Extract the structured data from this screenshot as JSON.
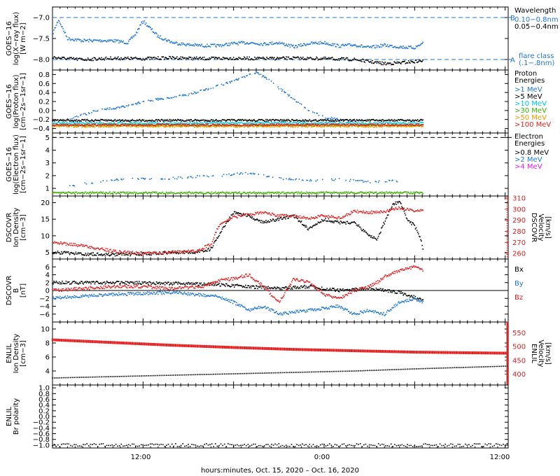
{
  "footer": {
    "time_label": "hours:minutes, Oct. 15, 2020 – Oct. 16, 2020"
  },
  "x_axis": {
    "ticks": [
      {
        "hour": 12,
        "label": "12:00"
      },
      {
        "hour": 24,
        "label": "0:00"
      },
      {
        "hour": 36,
        "label": "12:00"
      }
    ],
    "range_hours": [
      6,
      36.2
    ],
    "data_end_hour": 30.6
  },
  "colors": {
    "black": "#000000",
    "blue": "#1f77d6",
    "cyan": "#00c8e0",
    "green": "#3cb000",
    "orange": "#e8a000",
    "red": "#e02020",
    "magenta": "#e020e0"
  },
  "chart_data": [
    {
      "type": "line",
      "name": "xray",
      "ylabel": [
        "GOES−16",
        "log(X−ray flux)",
        "[W m−2]"
      ],
      "ytick_labels": [
        "−7.0",
        "−7.5",
        "−8.0"
      ],
      "yticks": [
        -7.0,
        -7.5,
        -8.0
      ],
      "ylim": [
        -8.25,
        -6.75
      ],
      "ref_lines": [
        {
          "y": -7.0,
          "letter": "B"
        },
        {
          "y": -8.0,
          "letter": "A"
        }
      ],
      "legend": {
        "title": "Wavelength",
        "items": [
          {
            "label": "0.10−0.8nm",
            "color": "blue"
          },
          {
            "label": "0.05−0.4nm",
            "color": "black"
          }
        ],
        "note": [
          "flare class",
          "(.1−.8nm)"
        ]
      },
      "series": [
        {
          "color": "blue",
          "x": [
            6.0,
            6.4,
            7.0,
            8.0,
            9.0,
            10.0,
            11.0,
            11.5,
            12.0,
            13.0,
            14.0,
            15.0,
            16.0,
            17.0,
            18.0,
            19.0,
            20.0,
            21.0,
            22.0,
            23.0,
            24.0,
            25.0,
            26.0,
            27.0,
            28.0,
            29.0,
            30.0,
            30.6
          ],
          "y": [
            -7.4,
            -7.05,
            -7.5,
            -7.55,
            -7.55,
            -7.55,
            -7.6,
            -7.4,
            -7.08,
            -7.45,
            -7.6,
            -7.65,
            -7.67,
            -7.67,
            -7.62,
            -7.6,
            -7.63,
            -7.6,
            -7.7,
            -7.62,
            -7.6,
            -7.68,
            -7.65,
            -7.72,
            -7.66,
            -7.7,
            -7.72,
            -7.6
          ]
        },
        {
          "color": "black",
          "x": [
            6.0,
            7.0,
            8.0,
            10.0,
            12.0,
            14.0,
            16.0,
            18.0,
            20.0,
            22.0,
            24.0,
            26.0,
            27.0,
            28.0,
            29.0,
            30.0,
            30.6
          ],
          "y": [
            -7.95,
            -7.98,
            -8.0,
            -7.97,
            -7.98,
            -7.96,
            -7.98,
            -7.97,
            -7.98,
            -7.97,
            -7.98,
            -8.0,
            -8.05,
            -8.1,
            -8.08,
            -8.05,
            -8.03
          ]
        }
      ]
    },
    {
      "type": "scatter",
      "name": "proton",
      "ylabel": [
        "GOES−16",
        "log(Proton flux)",
        "[cm−2s−1sr−1]"
      ],
      "ytick_labels": [
        "0.8",
        "0.6",
        "0.4",
        "0.2",
        "0.0",
        "−0.2",
        "−0.4"
      ],
      "yticks": [
        0.8,
        0.6,
        0.4,
        0.2,
        0.0,
        -0.2,
        -0.4
      ],
      "ylim": [
        -0.5,
        0.9
      ],
      "legend": {
        "title": [
          "Proton",
          "Energies"
        ],
        "items": [
          {
            "label": ">1 MeV",
            "color": "blue"
          },
          {
            "label": ">5 MeV",
            "color": "black"
          },
          {
            "label": ">10 MeV",
            "color": "cyan"
          },
          {
            "label": ">30 MeV",
            "color": "green"
          },
          {
            "label": ">50 MeV",
            "color": "orange"
          },
          {
            "label": ">100 MeV",
            "color": "red"
          }
        ]
      },
      "series": [
        {
          "color": "blue",
          "x": [
            7.0,
            8.0,
            9.0,
            10.0,
            11.0,
            12.0,
            13.0,
            14.0,
            15.0,
            16.0,
            17.0,
            18.0,
            19.0,
            19.5,
            20.0,
            20.5,
            21.0,
            22.0,
            23.0,
            24.0,
            25.0,
            26.0
          ],
          "y": [
            -0.2,
            -0.1,
            0.0,
            0.05,
            0.1,
            0.2,
            0.25,
            0.3,
            0.35,
            0.45,
            0.55,
            0.65,
            0.78,
            0.85,
            0.75,
            0.65,
            0.5,
            0.25,
            0.0,
            -0.15,
            -0.2,
            -0.25
          ]
        },
        {
          "color": "black",
          "x": [
            6.0,
            30.6
          ],
          "y": [
            -0.22,
            -0.22
          ]
        },
        {
          "color": "cyan",
          "x": [
            6.0,
            30.6
          ],
          "y": [
            -0.28,
            -0.28
          ]
        },
        {
          "color": "green",
          "x": [
            6.0,
            30.6
          ],
          "y": [
            -0.33,
            -0.33
          ]
        },
        {
          "color": "orange",
          "x": [
            6.0,
            30.6
          ],
          "y": [
            -0.35,
            -0.35
          ]
        },
        {
          "color": "red",
          "x": [
            6.0,
            30.6
          ],
          "y": [
            -0.32,
            -0.32
          ]
        }
      ]
    },
    {
      "type": "scatter",
      "name": "electron",
      "ylabel": [
        "GOES−16",
        "log(Electron flux)",
        "[cm−2s−1sr−1]"
      ],
      "ytick_labels": [
        "5",
        "4",
        "3",
        "2",
        "1"
      ],
      "yticks": [
        5,
        4,
        3,
        2,
        1
      ],
      "ylim": [
        0.4,
        5.35
      ],
      "ref_lines": [
        {
          "y": 5.0
        }
      ],
      "legend": {
        "title": [
          "Electron",
          "Energies"
        ],
        "items": [
          {
            "label": ">0.8 MeV",
            "color": "black"
          },
          {
            "label": ">2 MeV",
            "color": "blue"
          },
          {
            "label": ">4 MeV",
            "color": "magenta"
          }
        ]
      },
      "series": [
        {
          "color": "blue",
          "x": [
            7.0,
            9.0,
            11.0,
            13.0,
            15.0,
            17.0,
            19.0,
            21.0,
            23.0,
            25.0,
            27.0,
            29.0
          ],
          "y": [
            1.2,
            1.5,
            1.8,
            1.7,
            1.9,
            2.0,
            2.2,
            1.8,
            1.6,
            1.7,
            1.5,
            1.6
          ]
        },
        {
          "color": "green",
          "x": [
            6.0,
            30.6
          ],
          "y": [
            0.65,
            0.65
          ]
        }
      ]
    },
    {
      "type": "line",
      "name": "dscovr-density",
      "ylabel": [
        "DSCOVR",
        "Ion Density",
        "[cm−3]"
      ],
      "ytick_labels": [
        "20",
        "15",
        "10",
        "5"
      ],
      "yticks": [
        20,
        15,
        10,
        5
      ],
      "ylim": [
        3,
        22
      ],
      "y2label": [
        "DSCOVR",
        "Velocity",
        "[km/s]"
      ],
      "y2tick_labels": [
        "310",
        "300",
        "290",
        "280",
        "270",
        "260"
      ],
      "y2ticks": [
        310,
        300,
        290,
        280,
        270,
        260
      ],
      "y2lim": [
        255,
        312
      ],
      "series": [
        {
          "color": "black",
          "axis": "left",
          "x": [
            6.0,
            8.0,
            10.0,
            12.0,
            14.0,
            15.5,
            16.5,
            17.0,
            18.0,
            19.0,
            20.0,
            21.0,
            22.0,
            23.0,
            24.0,
            25.0,
            26.0,
            27.0,
            27.5,
            28.0,
            28.5,
            29.0,
            29.5,
            30.0,
            30.4,
            30.6
          ],
          "y": [
            5.0,
            4.5,
            4.3,
            4.5,
            5.0,
            5.0,
            6.0,
            10.0,
            17.0,
            16.0,
            14.0,
            15.0,
            16.0,
            12.0,
            15.0,
            14.0,
            14.0,
            10.0,
            9.0,
            14.0,
            19.0,
            20.5,
            15.0,
            13.0,
            9.0,
            5.5
          ]
        },
        {
          "color": "red",
          "axis": "right",
          "x": [
            6.0,
            8.0,
            10.0,
            12.0,
            14.0,
            15.5,
            16.5,
            17.0,
            18.0,
            19.0,
            20.0,
            21.0,
            22.0,
            23.0,
            24.0,
            25.0,
            26.0,
            27.0,
            28.0,
            29.0,
            30.0,
            30.6
          ],
          "y": [
            270.0,
            267.0,
            262.0,
            260.0,
            261.0,
            262.0,
            268.0,
            285.0,
            293.0,
            295.0,
            297.0,
            294.0,
            294.0,
            292.0,
            294.0,
            292.0,
            298.0,
            297.0,
            298.0,
            301.0,
            299.0,
            298.0
          ]
        }
      ]
    },
    {
      "type": "line",
      "name": "dscovr-bfield",
      "ylabel": [
        "DSCOVR",
        "B",
        "[nT]"
      ],
      "ytick_labels": [
        "6",
        "4",
        "2",
        "0",
        "−2",
        "−4",
        "−6"
      ],
      "yticks": [
        6,
        4,
        2,
        0,
        -2,
        -4,
        -6
      ],
      "ylim": [
        -8,
        8
      ],
      "legend": {
        "items": [
          {
            "label": "Bx",
            "color": "black"
          },
          {
            "label": "By",
            "color": "blue"
          },
          {
            "label": "Bz",
            "color": "red"
          }
        ]
      },
      "series": [
        {
          "color": "black",
          "x": [
            6.0,
            10.0,
            14.0,
            17.0,
            19.0,
            21.0,
            23.0,
            25.0,
            27.0,
            29.0,
            30.6
          ],
          "y": [
            2.0,
            2.0,
            1.8,
            1.5,
            1.0,
            0.5,
            1.0,
            0.0,
            0.5,
            -0.5,
            -2.5
          ]
        },
        {
          "color": "blue",
          "x": [
            6.0,
            10.0,
            14.0,
            17.0,
            18.0,
            19.0,
            20.0,
            21.0,
            23.0,
            25.0,
            26.0,
            27.0,
            28.0,
            29.0,
            30.0,
            30.6
          ],
          "y": [
            -2.0,
            -1.0,
            -0.5,
            -1.5,
            -3.0,
            -5.0,
            -4.0,
            -6.0,
            -5.0,
            -4.0,
            -6.0,
            -5.0,
            -6.0,
            -3.0,
            -2.0,
            -3.0
          ]
        },
        {
          "color": "red",
          "x": [
            6.0,
            8.0,
            10.0,
            12.0,
            14.0,
            16.0,
            17.0,
            18.0,
            19.0,
            20.0,
            21.0,
            22.0,
            23.0,
            24.0,
            25.0,
            26.0,
            27.0,
            27.5,
            28.0,
            29.0,
            30.0,
            30.6
          ],
          "y": [
            0.0,
            0.5,
            1.0,
            1.0,
            0.5,
            1.0,
            2.5,
            3.0,
            4.0,
            1.0,
            -3.0,
            3.0,
            2.0,
            -1.0,
            -2.0,
            0.0,
            1.0,
            2.0,
            3.5,
            5.0,
            6.0,
            5.0
          ]
        }
      ]
    },
    {
      "type": "line",
      "name": "enlil-density",
      "ylabel": [
        "ENLIL",
        "Ion Density",
        "[cm−3]"
      ],
      "ytick_labels": [
        "10",
        "8",
        "6",
        "4"
      ],
      "yticks": [
        10,
        8,
        6,
        4
      ],
      "ylim": [
        2,
        11
      ],
      "y2label": [
        "ENLIL",
        "Velocity",
        "[km/s]"
      ],
      "y2tick_labels": [
        "550",
        "500",
        "450",
        "400"
      ],
      "y2ticks": [
        550,
        500,
        450,
        400
      ],
      "y2lim": [
        360,
        590
      ],
      "series": [
        {
          "color": "black",
          "axis": "left",
          "x": [
            6.0,
            10.0,
            14.0,
            18.0,
            22.0,
            26.0,
            30.0,
            33.0,
            36.2
          ],
          "y": [
            3.0,
            3.2,
            3.4,
            3.6,
            3.8,
            4.0,
            4.3,
            4.5,
            4.7
          ]
        },
        {
          "color": "red",
          "axis": "right",
          "x": [
            6.0,
            10.0,
            14.0,
            18.0,
            22.0,
            26.0,
            30.0,
            33.0,
            36.2
          ],
          "y": [
            525.0,
            515.0,
            505.0,
            497.0,
            490.0,
            485.0,
            480.0,
            478.0,
            476.0
          ]
        }
      ]
    },
    {
      "type": "line",
      "name": "enlil-polarity",
      "ylabel": [
        "ENLIL",
        "Br polarity"
      ],
      "ytick_labels": [
        "1.0",
        "0.8",
        "0.6",
        "0.4",
        "0.2",
        "0.0",
        "−0.2",
        "−0.4",
        "−0.6",
        "−0.8",
        "−1.0"
      ],
      "yticks": [
        1.0,
        0.8,
        0.6,
        0.4,
        0.2,
        0.0,
        -0.2,
        -0.4,
        -0.6,
        -0.8,
        -1.0
      ],
      "ylim": [
        -1.1,
        1.1
      ],
      "series": [
        {
          "color": "black",
          "x": [
            6.0,
            36.2
          ],
          "y": [
            -1.0,
            -1.0
          ]
        }
      ]
    }
  ]
}
